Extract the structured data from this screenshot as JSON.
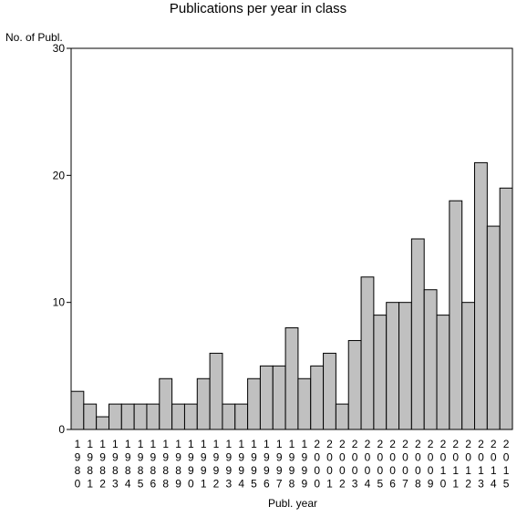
{
  "chart_data": {
    "type": "bar",
    "title": "Publications per year in class",
    "ylabel": "No. of Publ.",
    "xlabel": "Publ. year",
    "ylim": [
      0,
      30
    ],
    "yticks": [
      0,
      10,
      20,
      30
    ],
    "grid": false,
    "bar_color": "#c0c0c0",
    "categories": [
      "1980",
      "1981",
      "1982",
      "1983",
      "1984",
      "1985",
      "1986",
      "1988",
      "1989",
      "1990",
      "1991",
      "1992",
      "1993",
      "1994",
      "1995",
      "1996",
      "1997",
      "1998",
      "1999",
      "2000",
      "2001",
      "2002",
      "2003",
      "2004",
      "2005",
      "2006",
      "2007",
      "2008",
      "2009",
      "2010",
      "2011",
      "2012",
      "2013",
      "2014",
      "2015"
    ],
    "values": [
      3,
      2,
      1,
      2,
      2,
      2,
      2,
      4,
      2,
      2,
      4,
      6,
      2,
      2,
      4,
      5,
      5,
      8,
      4,
      5,
      6,
      2,
      7,
      12,
      9,
      10,
      10,
      15,
      11,
      9,
      18,
      10,
      21,
      16,
      19
    ]
  }
}
